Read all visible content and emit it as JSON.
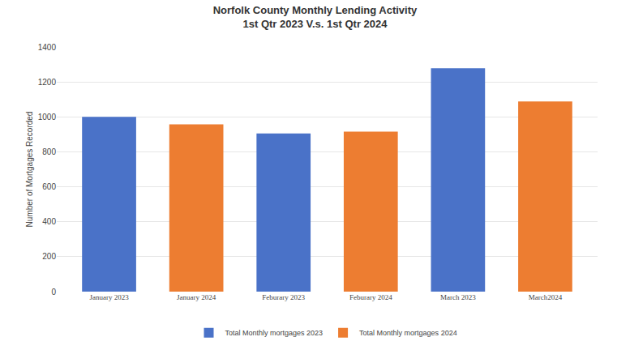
{
  "chart_data": {
    "type": "bar",
    "title": "Norfolk County Monthly Lending Activity\n1st Qtr 2023 V.s. 1st Qtr 2024",
    "y_label": "Number of Mortgages Recorded",
    "categories": [
      "January 2023",
      "January 2024",
      "Feburary 2023",
      "Feburary 2024",
      "March 2023",
      "March2024"
    ],
    "series": [
      {
        "name": "Total Monthly mortgages 2023",
        "color": "#4a72c8",
        "values": [
          1000,
          null,
          905,
          null,
          1278,
          null
        ]
      },
      {
        "name": "Total Monthly mortgages 2024",
        "color": "#ed7d31",
        "values": [
          null,
          957,
          null,
          915,
          null,
          1088
        ]
      }
    ],
    "ylim": [
      0,
      1400
    ],
    "yticks": [
      0,
      200,
      400,
      600,
      800,
      1000,
      1200,
      1400
    ],
    "grid": true,
    "legend": "bottom"
  }
}
